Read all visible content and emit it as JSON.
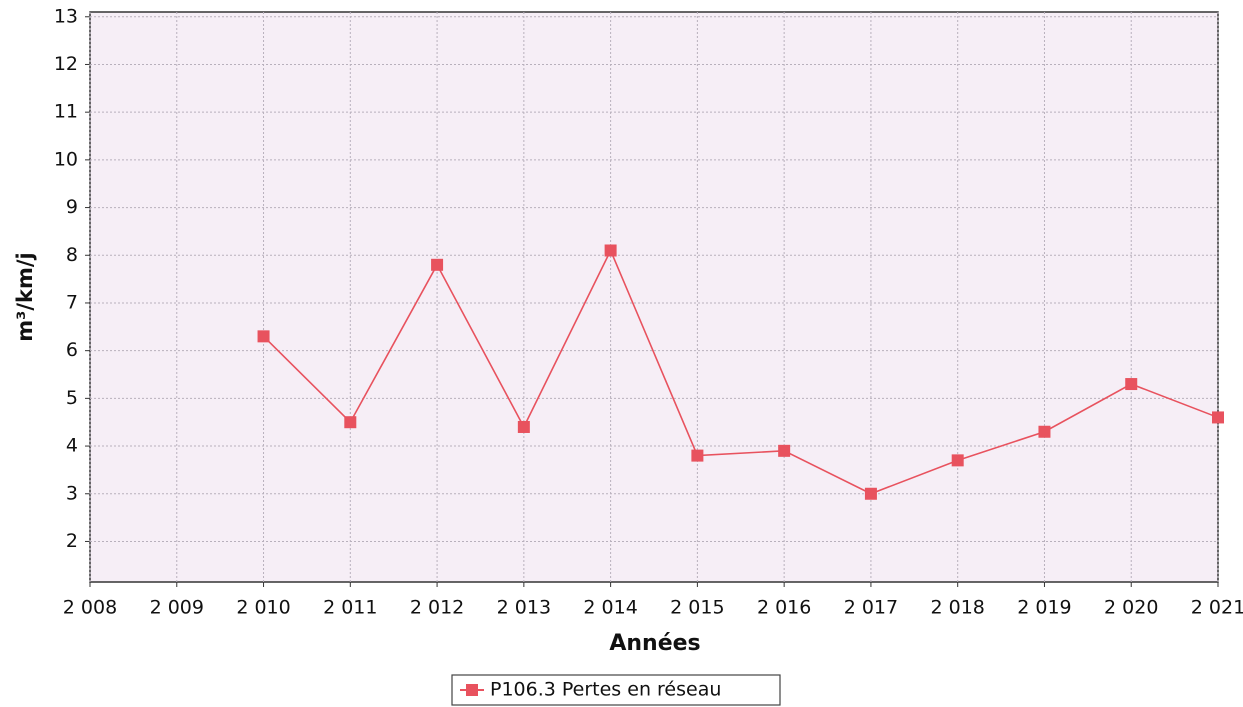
{
  "chart_data": {
    "type": "line",
    "x_label": "Années",
    "y_label": "m³/km/j",
    "x": [
      2010,
      2011,
      2012,
      2013,
      2014,
      2015,
      2016,
      2017,
      2018,
      2019,
      2020,
      2021
    ],
    "series": [
      {
        "name": "P106.3 Pertes en réseau",
        "color": "#e8525e",
        "values": [
          6.3,
          4.5,
          7.8,
          4.4,
          8.1,
          3.8,
          3.9,
          3.0,
          3.7,
          4.3,
          5.3,
          4.6
        ]
      }
    ],
    "xlim": [
      2008,
      2021
    ],
    "xticks": [
      {
        "value": 2008,
        "label": "2 008"
      },
      {
        "value": 2009,
        "label": "2 009"
      },
      {
        "value": 2010,
        "label": "2 010"
      },
      {
        "value": 2011,
        "label": "2 011"
      },
      {
        "value": 2012,
        "label": "2 012"
      },
      {
        "value": 2013,
        "label": "2 013"
      },
      {
        "value": 2014,
        "label": "2 014"
      },
      {
        "value": 2015,
        "label": "2 015"
      },
      {
        "value": 2016,
        "label": "2 016"
      },
      {
        "value": 2017,
        "label": "2 017"
      },
      {
        "value": 2018,
        "label": "2 018"
      },
      {
        "value": 2019,
        "label": "2 019"
      },
      {
        "value": 2020,
        "label": "2 020"
      },
      {
        "value": 2021,
        "label": "2 021"
      }
    ],
    "ylim": [
      1.15,
      13.1
    ],
    "yticks": [
      2,
      3,
      4,
      5,
      6,
      7,
      8,
      9,
      10,
      11,
      12,
      13
    ],
    "grid": true,
    "legend": "bottom"
  }
}
